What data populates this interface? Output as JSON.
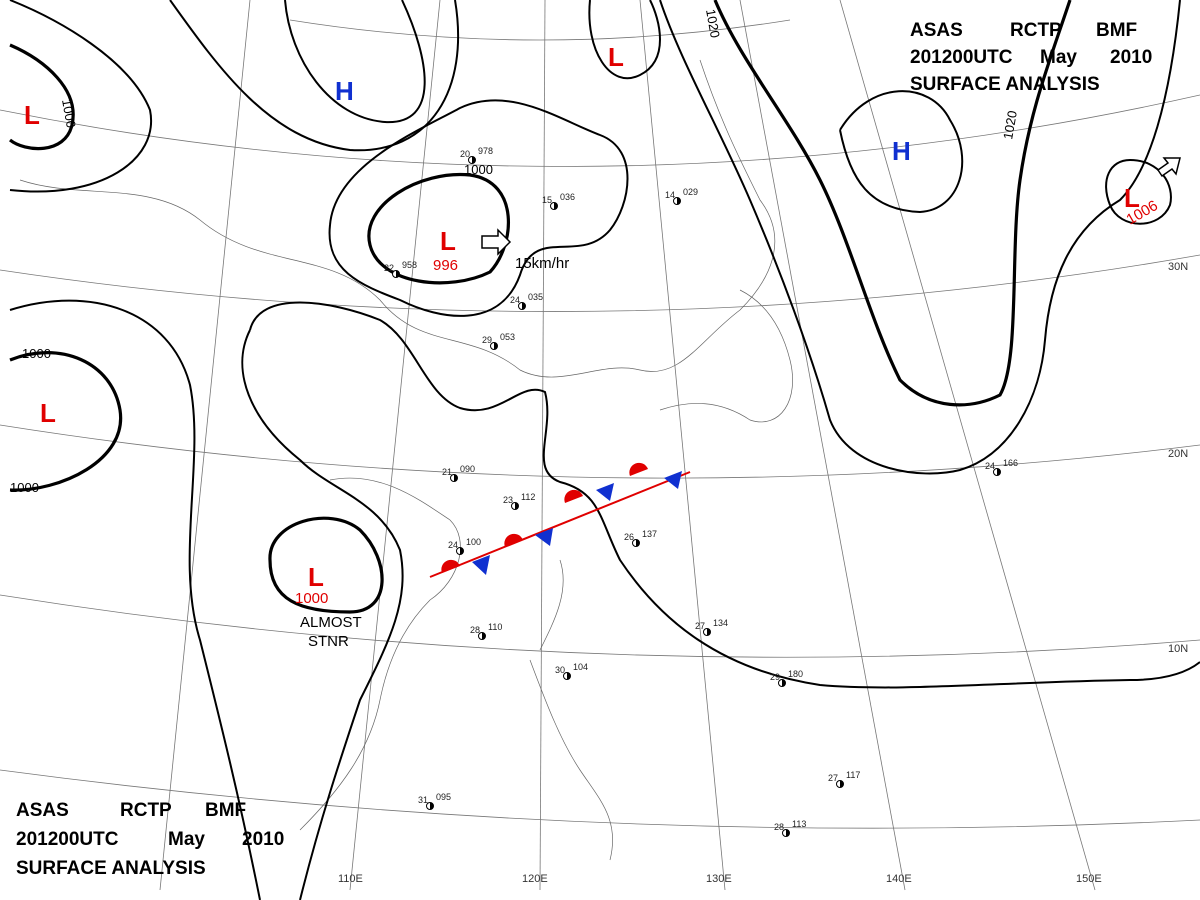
{
  "header": {
    "line1": [
      "ASAS",
      "RCTP",
      "BMF"
    ],
    "line2": [
      "201200UTC",
      "May",
      "2010"
    ],
    "line3": "SURFACE ANALYSIS"
  },
  "systems": [
    {
      "letter": "L"
    },
    {
      "letter": "H"
    },
    {
      "letter": "L"
    },
    {
      "letter": "H"
    },
    {
      "letter": "L",
      "pressure": "996"
    },
    {
      "letter": "L"
    },
    {
      "letter": "L",
      "pressure": "1000"
    },
    {
      "letter": "L",
      "pressure": "1006"
    }
  ],
  "isobar_labels": [
    "1000",
    "1000",
    "1000",
    "1000",
    "1020",
    "1020"
  ],
  "longitudes": [
    "110E",
    "120E",
    "130E",
    "140E",
    "150E"
  ],
  "latitudes": [
    "30N",
    "20N",
    "10N"
  ],
  "annotations": {
    "motion": "15km/hr",
    "stationary": [
      "ALMOST",
      "STNR"
    ]
  },
  "stations": [
    {
      "temp": "20",
      "pressure": "978"
    },
    {
      "temp": "22",
      "pressure": "958"
    },
    {
      "temp": "15",
      "pressure": "036"
    },
    {
      "temp": "24",
      "pressure": "035"
    },
    {
      "temp": "29",
      "pressure": "053"
    },
    {
      "temp": "21",
      "pressure": "090"
    },
    {
      "temp": "23",
      "pressure": "112"
    },
    {
      "temp": "24",
      "pressure": "100"
    },
    {
      "temp": "26",
      "pressure": "137"
    },
    {
      "temp": "27",
      "pressure": "134"
    },
    {
      "temp": "29",
      "pressure": "180"
    },
    {
      "temp": "28",
      "pressure": "110"
    },
    {
      "temp": "30",
      "pressure": "104"
    },
    {
      "temp": "31",
      "pressure": "095"
    },
    {
      "temp": "27",
      "pressure": "117"
    },
    {
      "temp": "28",
      "pressure": "113"
    },
    {
      "temp": "14",
      "pressure": "029"
    },
    {
      "temp": "24",
      "pressure": "166"
    }
  ]
}
